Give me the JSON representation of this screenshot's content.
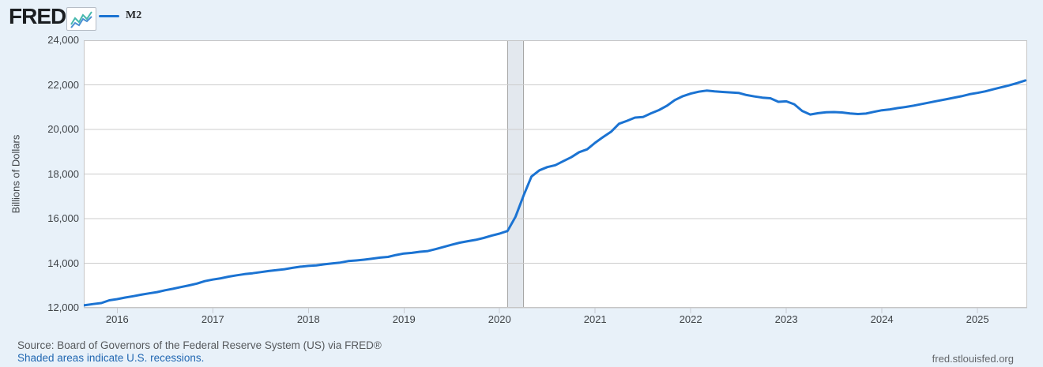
{
  "header": {
    "logo_text": "FRED",
    "registered_mark": "®",
    "legend": {
      "label": "M2"
    }
  },
  "colors": {
    "page_bg": "#e8f1f9",
    "plot_bg": "#ffffff",
    "gridline": "#cccccc",
    "plot_border": "#c6c6c6",
    "tick": "#c9ccd2",
    "series_line": "#1b73d2",
    "recession_fill": "#e3e8ee",
    "recession_edge": "#a6a6a6",
    "logo_icon_blue": "#4a90d2",
    "logo_icon_teal": "#45b8ad"
  },
  "chart_data": {
    "type": "line",
    "ylabel": "Billions of Dollars",
    "xlabel": "",
    "grid": "horizontal",
    "legend_position": "top-left",
    "xlim": [
      2015.65,
      2025.52
    ],
    "ylim": [
      12000,
      24000
    ],
    "y_axis": {
      "labels": [
        "24,000",
        "22,000",
        "20,000",
        "18,000",
        "16,000",
        "14,000",
        "12,000"
      ],
      "values": [
        24000,
        22000,
        20000,
        18000,
        16000,
        14000,
        12000
      ]
    },
    "x_axis": {
      "labels": [
        "2016",
        "2017",
        "2018",
        "2019",
        "2020",
        "2021",
        "2022",
        "2023",
        "2024",
        "2025"
      ],
      "values": [
        2016,
        2017,
        2018,
        2019,
        2020,
        2021,
        2022,
        2023,
        2024,
        2025
      ]
    },
    "recession_bands": [
      {
        "start": 2020.085,
        "end": 2020.252
      }
    ],
    "series": [
      {
        "name": "M2",
        "frequency": "monthly",
        "start_year": 2015,
        "start_month": 8,
        "values": [
          12078,
          12122,
          12169,
          12214,
          12338,
          12390,
          12460,
          12520,
          12589,
          12649,
          12705,
          12786,
          12852,
          12930,
          13007,
          13086,
          13197,
          13268,
          13325,
          13399,
          13459,
          13513,
          13551,
          13601,
          13650,
          13690,
          13731,
          13791,
          13846,
          13878,
          13906,
          13950,
          13991,
          14030,
          14095,
          14125,
          14158,
          14201,
          14250,
          14282,
          14368,
          14434,
          14463,
          14515,
          14545,
          14633,
          14733,
          14829,
          14919,
          14987,
          15047,
          15134,
          15235,
          15328,
          15446,
          16082,
          17023,
          17885,
          18165,
          18312,
          18395,
          18578,
          18753,
          18979,
          19107,
          19403,
          19659,
          19896,
          20256,
          20386,
          20530,
          20554,
          20722,
          20866,
          21059,
          21316,
          21489,
          21608,
          21692,
          21740,
          21706,
          21681,
          21661,
          21640,
          21545,
          21480,
          21425,
          21398,
          21240,
          21260,
          21130,
          20830,
          20670,
          20730,
          20770,
          20780,
          20760,
          20720,
          20690,
          20710,
          20790,
          20860,
          20900,
          20960,
          21010,
          21070,
          21140,
          21210,
          21280,
          21350,
          21420,
          21490,
          21580,
          21640,
          21710,
          21800,
          21890,
          21980,
          22080,
          22200
        ]
      }
    ]
  },
  "footer": {
    "source": "Source: Board of Governors of the Federal Reserve System (US) via FRED®",
    "shaded_note": "Shaded areas indicate U.S. recessions.",
    "site": "fred.stlouisfed.org"
  }
}
